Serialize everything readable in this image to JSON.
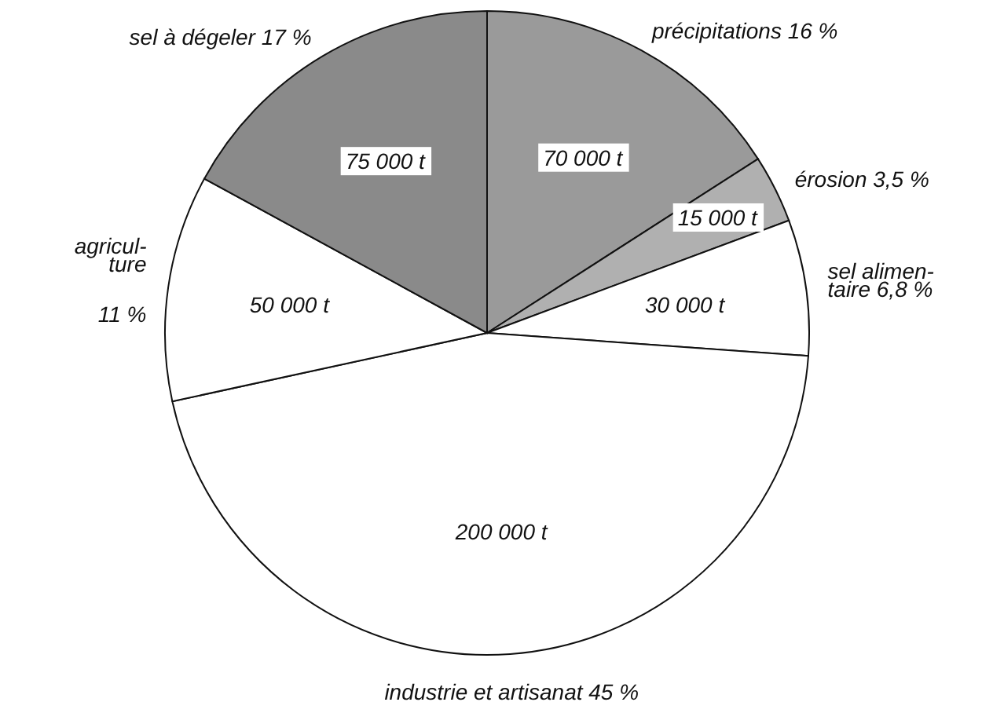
{
  "chart_data": {
    "type": "pie",
    "categories": [
      "précipitations 16 %",
      "érosion 3,5 %",
      "sel alimen-\ntaire 6,8 %",
      "industrie et artisanat 45 %",
      "agricul-\nture\n\n11 %",
      "sel à dégeler 17 %"
    ],
    "values": [
      70000,
      15000,
      30000,
      200000,
      50000,
      75000
    ],
    "value_labels": [
      "70 000 t",
      "15 000 t",
      "30 000 t",
      "200 000 t",
      "50 000 t",
      "75 000 t"
    ],
    "colors": [
      "#9a9a9a",
      "#b0b0b0",
      "#ffffff",
      "#ffffff",
      "#ffffff",
      "#8a8a8a"
    ]
  }
}
